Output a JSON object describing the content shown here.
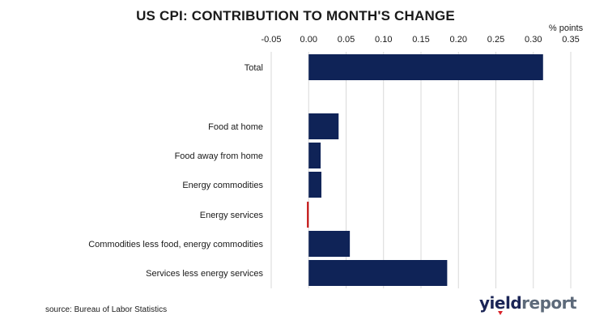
{
  "chart_data": {
    "type": "bar",
    "orientation": "horizontal",
    "title": "US CPI: CONTRIBUTION TO MONTH'S CHANGE",
    "unit_label": "% points",
    "xlim": [
      -0.05,
      0.35
    ],
    "ticks": [
      -0.05,
      0.0,
      0.05,
      0.1,
      0.15,
      0.2,
      0.25,
      0.3,
      0.35
    ],
    "tick_labels": [
      "-0.05",
      "0.00",
      "0.05",
      "0.10",
      "0.15",
      "0.20",
      "0.25",
      "0.30",
      "0.35"
    ],
    "axis_position": "top",
    "grid": true,
    "bars": [
      {
        "category": "Total",
        "value": 0.313,
        "color": "#0f2357"
      },
      {
        "category": "Food at home",
        "value": 0.04,
        "color": "#0f2357"
      },
      {
        "category": "Food away from home",
        "value": 0.016,
        "color": "#0f2357"
      },
      {
        "category": "Energy commodities",
        "value": 0.017,
        "color": "#0f2357"
      },
      {
        "category": "Energy services",
        "value": -0.002,
        "color": "#c00000"
      },
      {
        "category": "Commodities less food, energy commodities",
        "value": 0.055,
        "color": "#0f2357"
      },
      {
        "category": "Services less energy services",
        "value": 0.185,
        "color": "#0f2357"
      }
    ]
  },
  "source": "source: Bureau of Labor Statistics",
  "brand": {
    "part1": "yield",
    "part2": "report"
  }
}
